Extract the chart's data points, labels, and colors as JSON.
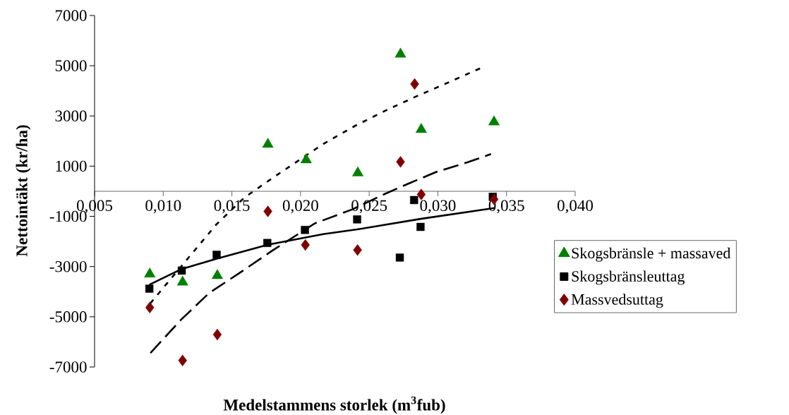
{
  "chart_data": {
    "type": "scatter",
    "xlabel": "Medelstammens storlek (m$^{3}$fub)",
    "ylabel": "Nettointäkt (kr/ha)",
    "xlim": [
      0.005,
      0.04
    ],
    "ylim": [
      -7000,
      7000
    ],
    "xticks": [
      {
        "value": 0.005,
        "label": "0,005"
      },
      {
        "value": 0.01,
        "label": "0,010"
      },
      {
        "value": 0.015,
        "label": "0,015"
      },
      {
        "value": 0.02,
        "label": "0,020"
      },
      {
        "value": 0.025,
        "label": "0,025"
      },
      {
        "value": 0.03,
        "label": "0,030"
      },
      {
        "value": 0.035,
        "label": "0,035"
      },
      {
        "value": 0.04,
        "label": "0,040"
      }
    ],
    "yticks": [
      -7000,
      -5000,
      -3000,
      -1000,
      1000,
      3000,
      5000,
      7000
    ],
    "legend": "right",
    "series": [
      {
        "name": "Skogsbränsle + massaved",
        "color": "#008000",
        "marker": "triangle",
        "x": [
          0.00902,
          0.01141,
          0.01394,
          0.01762,
          0.02041,
          0.02417,
          0.02728,
          0.02879,
          0.03409
        ],
        "values": [
          -3300,
          -3620,
          -3360,
          1870,
          1250,
          730,
          5460,
          2460,
          2760
        ]
      },
      {
        "name": "Skogsbränsleuttag",
        "color": "#000000",
        "marker": "square",
        "x": [
          0.00899,
          0.01135,
          0.01389,
          0.01758,
          0.02032,
          0.02412,
          0.02723,
          0.02827,
          0.02874,
          0.034
        ],
        "values": [
          -3880,
          -3160,
          -2530,
          -2060,
          -1540,
          -1120,
          -2640,
          -350,
          -1420,
          -220
        ]
      },
      {
        "name": "Massvedsuttag",
        "color": "#800000",
        "marker": "diamond",
        "x": [
          0.00902,
          0.01141,
          0.01394,
          0.01762,
          0.02035,
          0.02415,
          0.02728,
          0.02831,
          0.02879,
          0.03409
        ],
        "values": [
          -4630,
          -6740,
          -5710,
          -800,
          -2140,
          -2340,
          1170,
          4270,
          -130,
          -320
        ]
      },
      {
        "type": "line",
        "color": "#000000",
        "line_style": "dotted",
        "marker": "none",
        "x": [
          0.00905,
          0.01387,
          0.01591,
          0.01829,
          0.02164,
          0.02395,
          0.02625,
          0.02848,
          0.03079,
          0.0331
        ],
        "values": [
          -4470,
          -1320,
          -250,
          650,
          1880,
          2600,
          3230,
          3790,
          4340,
          4900
        ]
      },
      {
        "type": "line",
        "color": "#000000",
        "line_style": "dashed",
        "marker": "none",
        "x": [
          0.00907,
          0.01129,
          0.01335,
          0.01557,
          0.01796,
          0.02104,
          0.02378,
          0.02592,
          0.02788,
          0.02993,
          0.03215,
          0.03387
        ],
        "values": [
          -6440,
          -5120,
          -4050,
          -3250,
          -2360,
          -1280,
          -720,
          -160,
          310,
          780,
          1150,
          1480
        ]
      },
      {
        "type": "line",
        "color": "#000000",
        "line_style": "solid",
        "marker": "none",
        "x": [
          0.00899,
          0.01129,
          0.01386,
          0.01762,
          0.02164,
          0.02412,
          0.02874,
          0.03412
        ],
        "values": [
          -3720,
          -3110,
          -2690,
          -2130,
          -1710,
          -1520,
          -1100,
          -670
        ]
      }
    ]
  }
}
